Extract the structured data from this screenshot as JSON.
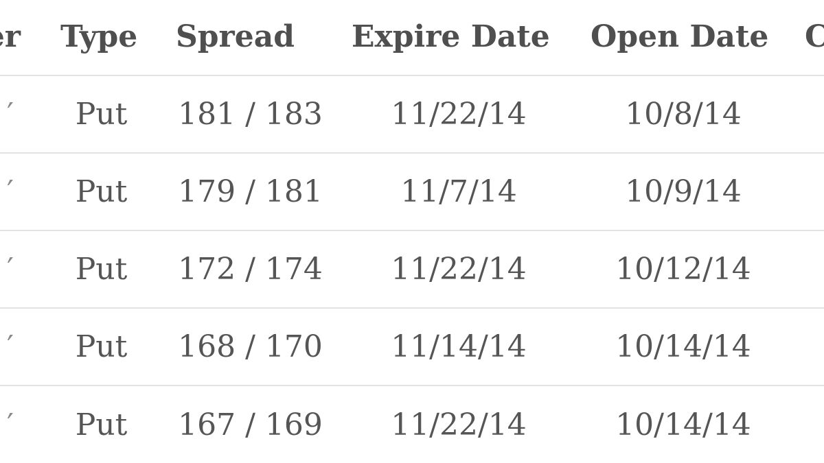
{
  "table": {
    "headers": {
      "partial_left": "er",
      "type": "Type",
      "spread": "Spread",
      "expire_date": "Expire Date",
      "open_date": "Open Date",
      "partial_right": "C"
    },
    "rows": [
      {
        "partial_left": "′",
        "type": "Put",
        "spread": "181 / 183",
        "expire_date": "11/22/14",
        "open_date": "10/8/14"
      },
      {
        "partial_left": "′",
        "type": "Put",
        "spread": "179 / 181",
        "expire_date": "11/7/14",
        "open_date": "10/9/14"
      },
      {
        "partial_left": "′",
        "type": "Put",
        "spread": "172 / 174",
        "expire_date": "11/22/14",
        "open_date": "10/12/14"
      },
      {
        "partial_left": "′",
        "type": "Put",
        "spread": "168 / 170",
        "expire_date": "11/14/14",
        "open_date": "10/14/14"
      },
      {
        "partial_left": "′",
        "type": "Put",
        "spread": "167 / 169",
        "expire_date": "11/22/14",
        "open_date": "10/14/14"
      }
    ]
  }
}
